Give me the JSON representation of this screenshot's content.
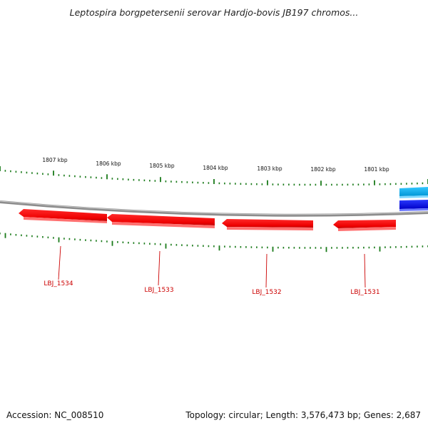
{
  "title": "Leptospira borgpetersenii serovar Hardjo-bovis JB197 chromos...",
  "scale_labels": [
    "1807 kbp",
    "1806 kbp",
    "1805 kbp",
    "1804 kbp",
    "1803 kbp",
    "1802 kbp",
    "1801 kbp"
  ],
  "genes": [
    {
      "label": "LBJ_1534",
      "color": "#ee0000"
    },
    {
      "label": "LBJ_1533",
      "color": "#ee0000"
    },
    {
      "label": "LBJ_1532",
      "color": "#ee0000"
    },
    {
      "label": "LBJ_1531",
      "color": "#ee0000"
    }
  ],
  "colors": {
    "backbone": "#8c8c8c",
    "ticks": "#1a7a1a",
    "forward_gene_a": "#00a8e8",
    "forward_gene_b": "#0010e0",
    "gene_label": "#cc0000"
  },
  "footer": {
    "accession": "Accession: NC_008510",
    "summary": "Topology: circular; Length: 3,576,473 bp; Genes: 2,687"
  }
}
